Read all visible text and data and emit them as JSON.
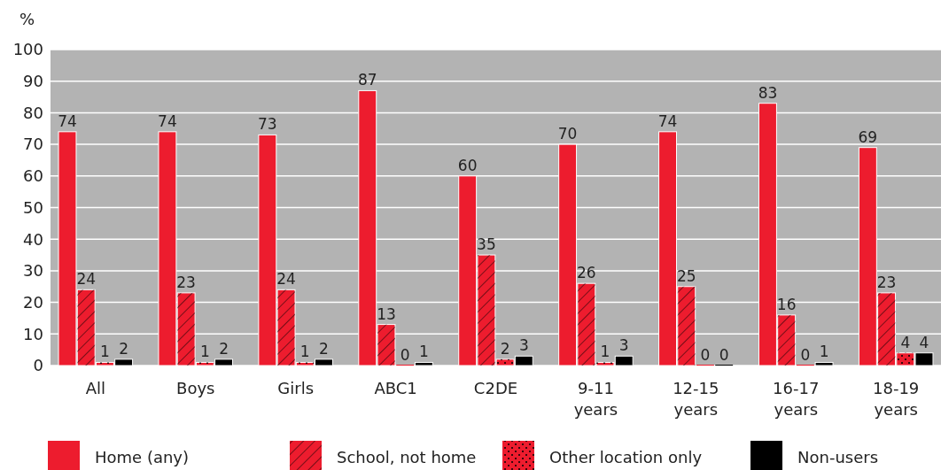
{
  "chart_data": {
    "type": "bar",
    "ylabel": "%",
    "categories": [
      "All",
      "Boys",
      "Girls",
      "ABC1",
      "C2DE",
      "9-11 years",
      "12-15 years",
      "16-17 years",
      "18-19 years"
    ],
    "series": [
      {
        "name": "Home (any)",
        "color": "#ed1c2e",
        "values": [
          74,
          74,
          73,
          87,
          60,
          70,
          74,
          83,
          69
        ]
      },
      {
        "name": "School, not home",
        "color": "#ed1c2e",
        "values": [
          24,
          23,
          24,
          13,
          35,
          26,
          25,
          16,
          23
        ]
      },
      {
        "name": "Other location only",
        "color": "#ed1c2e",
        "values": [
          1,
          1,
          1,
          0,
          2,
          1,
          0,
          0,
          4
        ]
      },
      {
        "name": "Non-users",
        "color": "#000000",
        "values": [
          2,
          2,
          2,
          1,
          3,
          3,
          0,
          1,
          4
        ]
      }
    ],
    "ylim": [
      0,
      100
    ],
    "yticks": [
      0,
      10,
      20,
      30,
      40,
      50,
      60,
      70,
      80,
      90,
      100
    ],
    "grid": "y",
    "legend": "bottom",
    "data_labels": true
  }
}
